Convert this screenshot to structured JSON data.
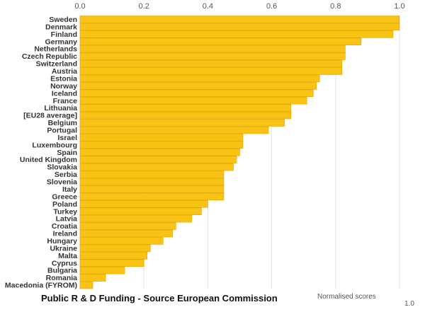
{
  "chart_data": {
    "type": "bar",
    "orientation": "horizontal",
    "title": "Public R & D Funding - Source European Commission",
    "xlabel": "Normalised scores",
    "xlim": [
      0,
      1.0
    ],
    "x_ticks": [
      "0.0",
      "0.2",
      "0.4",
      "0.6",
      "0.8",
      "1.0"
    ],
    "x_axis_end_label": "1.0",
    "grid": true,
    "categories": [
      "Sweden",
      "Denmark",
      "Finland",
      "Germany",
      "Netherlands",
      "Czech Republic",
      "Switzerland",
      "Austria",
      "Estonia",
      "Norway",
      "Iceland",
      "France",
      "Lithuania",
      "[EU28 average]",
      "Belgium",
      "Portugal",
      "Israel",
      "Luxembourg",
      "Spain",
      "United Kingdom",
      "Slovakia",
      "Serbia",
      "Slovenia",
      "Italy",
      "Greece",
      "Poland",
      "Turkey",
      "Latvia",
      "Croatia",
      "Ireland",
      "Hungary",
      "Ukraine",
      "Malta",
      "Cyprus",
      "Bulgaria",
      "Romania",
      "Macedonia (FYROM)"
    ],
    "values": [
      1.0,
      1.0,
      0.98,
      0.88,
      0.83,
      0.83,
      0.82,
      0.82,
      0.75,
      0.74,
      0.73,
      0.71,
      0.66,
      0.66,
      0.64,
      0.59,
      0.51,
      0.51,
      0.5,
      0.49,
      0.48,
      0.45,
      0.45,
      0.45,
      0.45,
      0.4,
      0.38,
      0.35,
      0.3,
      0.29,
      0.26,
      0.22,
      0.21,
      0.2,
      0.14,
      0.08,
      0.04
    ],
    "bar_color": "#f9c316",
    "bar_edge_color": "#e0a500"
  }
}
